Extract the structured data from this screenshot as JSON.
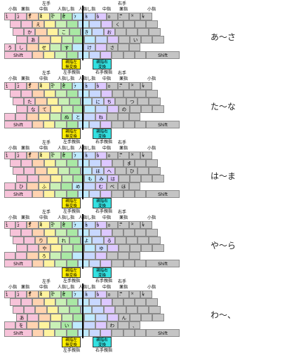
{
  "headers": {
    "left_hand": "左手",
    "right_hand": "右手",
    "fingers_left": [
      "小指",
      "薬指",
      "中指",
      "人指し指"
    ],
    "fingers_right": [
      "人指し指",
      "中指",
      "薬指",
      "小指"
    ],
    "thumb_left": "左手親指",
    "thumb_right": "右手親指"
  },
  "thumb_keys": {
    "left": [
      "親指左",
      "無変換"
    ],
    "right": [
      "親指右",
      "変換"
    ]
  },
  "shift_label": "Shift",
  "colors": {
    "pinky": "#f7c3d9",
    "ring": "#ffd3b0",
    "middle": "#fff39e",
    "index_left": "#c9f0b6",
    "index_left_inner": "#a9e8a4",
    "index_right": "#bfeaff",
    "middle_right": "#c8d8ff",
    "ring_right": "#ddc8ff",
    "pinky_right": "#c4c4c4",
    "gray": "#c4c4c4",
    "thumb_left": "#ffee00",
    "thumb_right": "#33e0e0"
  },
  "number_row": {
    "top": [
      "!",
      "\"",
      "#",
      "$",
      "%",
      "&",
      "'",
      "(",
      ")",
      "",
      "=",
      "~",
      "|"
    ],
    "bottom": [
      "1",
      "2",
      "3",
      "4",
      "5",
      "6",
      "7",
      "8",
      "9",
      "0",
      "-",
      "^",
      "¥"
    ]
  },
  "panels": [
    {
      "label": "あ～さ",
      "rows": [
        [
          "",
          "",
          "え",
          "",
          "",
          "",
          "",
          "",
          "",
          "く",
          "",
          "",
          ""
        ],
        [
          "",
          "か",
          "",
          "",
          "こ",
          "",
          "き",
          "",
          "お",
          "",
          "",
          "",
          ""
        ],
        [
          "",
          "あ",
          "",
          "",
          "",
          "",
          "",
          "",
          "",
          "",
          "い",
          "",
          ""
        ],
        [
          "う",
          "し",
          "",
          "せ",
          "",
          "す",
          "",
          "け",
          "",
          "さ",
          "",
          ""
        ]
      ]
    },
    {
      "label": "た～な",
      "rows": [
        [
          "",
          "",
          "",
          "",
          "",
          "",
          "",
          "",
          "",
          "",
          "",
          "",
          ""
        ],
        [
          "",
          "た",
          "",
          "",
          "",
          "",
          "",
          "に",
          "ち",
          "",
          "つ",
          "",
          ""
        ],
        [
          "",
          "な",
          "て",
          "",
          "",
          "",
          "",
          "",
          "",
          "の",
          "",
          "",
          ""
        ],
        [
          "",
          "",
          "",
          "",
          "",
          "ぬ",
          "と",
          "",
          "ね",
          "",
          "",
          ""
        ]
      ]
    },
    {
      "label": "は～ま",
      "rows": [
        [
          "",
          "",
          "",
          "",
          "",
          "",
          "",
          "",
          "",
          "",
          "ま",
          "",
          ""
        ],
        [
          "",
          "",
          "",
          "",
          "",
          "",
          "",
          "ほ",
          "へ",
          "",
          "ひ",
          "",
          ""
        ],
        [
          "",
          "",
          "",
          "",
          "",
          "",
          "も",
          "み",
          "は",
          "",
          "",
          "",
          ""
        ],
        [
          "",
          "ひ",
          "",
          "ふ",
          "",
          "",
          "め",
          "",
          "む",
          "べ",
          "ほ",
          ""
        ]
      ]
    },
    {
      "label": "や～ら",
      "rows": [
        [
          "",
          "",
          "",
          "",
          "",
          "",
          "",
          "",
          "",
          "",
          "",
          "",
          ""
        ],
        [
          "",
          "",
          "り",
          "",
          "れ",
          "",
          "よ",
          "",
          "る",
          "",
          "",
          "",
          ""
        ],
        [
          "",
          "",
          "や",
          "",
          "",
          "",
          "",
          "ゆ",
          "",
          "",
          "",
          "",
          ""
        ],
        [
          "",
          "",
          "",
          "ろ",
          "",
          "",
          "",
          "",
          "",
          "",
          "",
          ""
        ]
      ]
    },
    {
      "label": "わ～、",
      "rows": [
        [
          "",
          "",
          "",
          "",
          "",
          "",
          "",
          "",
          "",
          "",
          "",
          "",
          ""
        ],
        [
          "",
          "",
          "",
          "",
          "",
          "",
          "",
          "",
          "",
          "",
          "",
          "",
          ""
        ],
        [
          "あ",
          "",
          "",
          "",
          "",
          "",
          "",
          "",
          "",
          "ん",
          "",
          "",
          ""
        ],
        [
          "",
          "を",
          "",
          "",
          "",
          "い",
          "",
          "",
          "",
          "わ",
          "",
          "、"
        ]
      ]
    }
  ]
}
